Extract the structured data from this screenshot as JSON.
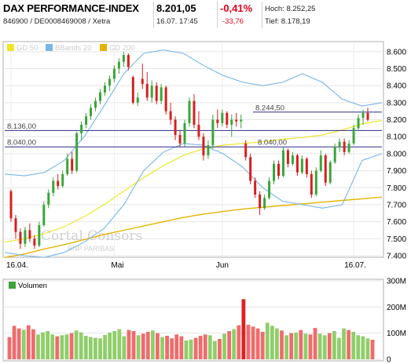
{
  "header": {
    "title": "DAX PERFORMANCE-INDEX",
    "ids": "846900 / DE0008469008 / Xetra",
    "price": "8.201,05",
    "timestamp": "16.07. 17:45",
    "change_pct": "-0,41%",
    "change_abs": "-33,76",
    "high": "Hoch: 8.252,25",
    "low": "Tief: 8.178,19"
  },
  "legend": {
    "gd50": "GD 50",
    "bbands": "BBands 20",
    "gd200": "GD 200"
  },
  "watermark": {
    "brand": "Cortal Consors",
    "sub": "BNP PARIBAS"
  },
  "volume_title": "Volumen",
  "colors": {
    "up": "#3aa53a",
    "down": "#d61f1f",
    "gd50": "#ece72a",
    "gd200": "#e6b400",
    "bbands": "#78b6e8",
    "hline": "#2a2a8a",
    "vol_up": "#8fce6a",
    "vol_down": "#ee6c6c",
    "vol_spike": "#e02020"
  },
  "chart_data": [
    {
      "type": "candlestick",
      "title": "DAX PERFORMANCE-INDEX",
      "x_ticks": [
        "16.04.",
        "Mai",
        "Jun",
        "16.07."
      ],
      "y_ticks": [
        "7.400",
        "7.500",
        "7.600",
        "7.700",
        "7.800",
        "7.900",
        "8.000",
        "8.100",
        "8.200",
        "8.300",
        "8.400",
        "8.500",
        "8.600"
      ],
      "ylim": [
        7400,
        8650
      ],
      "hlines": [
        {
          "value": 8244.5,
          "label": "8.244,50"
        },
        {
          "value": 8136,
          "label": "8.136,00"
        },
        {
          "value": 8040,
          "label": "8.040,00"
        }
      ],
      "hline_labels_right": [
        "8.040,00"
      ],
      "series": [
        {
          "name": "GD 50",
          "kind": "sma50",
          "values": [
            7480,
            7500,
            7530,
            7570,
            7630,
            7700,
            7780,
            7860,
            7930,
            7990,
            8030,
            8050,
            8060,
            8070,
            8085,
            8095,
            8110,
            8140,
            8175,
            8195
          ]
        },
        {
          "name": "GD 200",
          "kind": "sma200",
          "values": [
            7390,
            7410,
            7440,
            7465,
            7495,
            7525,
            7550,
            7575,
            7600,
            7625,
            7645,
            7660,
            7675,
            7685,
            7695,
            7705,
            7715,
            7725,
            7735,
            7745
          ]
        },
        {
          "name": "BBands 20",
          "kind": "bb_upper",
          "values": [
            7880,
            7870,
            7890,
            7960,
            8100,
            8280,
            8470,
            8590,
            8610,
            8590,
            8520,
            8460,
            8420,
            8400,
            8420,
            8470,
            8420,
            8320,
            8280,
            8300
          ]
        },
        {
          "name": "BBands 20",
          "kind": "bb_lower",
          "values": [
            7420,
            7400,
            7390,
            7420,
            7480,
            7560,
            7700,
            7900,
            8010,
            8060,
            8050,
            8000,
            7920,
            7800,
            7720,
            7700,
            7680,
            7700,
            7960,
            8000
          ]
        }
      ],
      "candles": [
        {
          "open": 7780,
          "high": 7790,
          "low": 7600,
          "close": 7620
        },
        {
          "open": 7620,
          "high": 7640,
          "low": 7500,
          "close": 7540
        },
        {
          "open": 7540,
          "high": 7560,
          "low": 7440,
          "close": 7470
        },
        {
          "open": 7470,
          "high": 7570,
          "low": 7450,
          "close": 7550
        },
        {
          "open": 7550,
          "high": 7590,
          "low": 7480,
          "close": 7500
        },
        {
          "open": 7500,
          "high": 7520,
          "low": 7440,
          "close": 7460
        },
        {
          "open": 7460,
          "high": 7600,
          "low": 7450,
          "close": 7580
        },
        {
          "open": 7580,
          "high": 7720,
          "low": 7570,
          "close": 7700
        },
        {
          "open": 7700,
          "high": 7790,
          "low": 7680,
          "close": 7770
        },
        {
          "open": 7770,
          "high": 7860,
          "low": 7750,
          "close": 7840
        },
        {
          "open": 7840,
          "high": 7880,
          "low": 7790,
          "close": 7810
        },
        {
          "open": 7810,
          "high": 7900,
          "low": 7800,
          "close": 7880
        },
        {
          "open": 7880,
          "high": 8000,
          "low": 7870,
          "close": 7970
        },
        {
          "open": 7970,
          "high": 8010,
          "low": 7880,
          "close": 7900
        },
        {
          "open": 7900,
          "high": 8130,
          "low": 7890,
          "close": 8120
        },
        {
          "open": 8120,
          "high": 8190,
          "low": 8080,
          "close": 8170
        },
        {
          "open": 8170,
          "high": 8240,
          "low": 8150,
          "close": 8220
        },
        {
          "open": 8220,
          "high": 8290,
          "low": 8200,
          "close": 8270
        },
        {
          "open": 8270,
          "high": 8330,
          "low": 8250,
          "close": 8310
        },
        {
          "open": 8310,
          "high": 8380,
          "low": 8290,
          "close": 8360
        },
        {
          "open": 8360,
          "high": 8420,
          "low": 8340,
          "close": 8400
        },
        {
          "open": 8400,
          "high": 8460,
          "low": 8370,
          "close": 8440
        },
        {
          "open": 8440,
          "high": 8520,
          "low": 8420,
          "close": 8500
        },
        {
          "open": 8500,
          "high": 8560,
          "low": 8470,
          "close": 8540
        },
        {
          "open": 8540,
          "high": 8600,
          "low": 8510,
          "close": 8580
        },
        {
          "open": 8580,
          "high": 8590,
          "low": 8490,
          "close": 8510
        },
        {
          "open": 8450,
          "high": 8460,
          "low": 8290,
          "close": 8300
        },
        {
          "open": 8300,
          "high": 8360,
          "low": 8280,
          "close": 8330
        },
        {
          "open": 8440,
          "high": 8530,
          "low": 8380,
          "close": 8410
        },
        {
          "open": 8410,
          "high": 8480,
          "low": 8310,
          "close": 8330
        },
        {
          "open": 8330,
          "high": 8430,
          "low": 8300,
          "close": 8400
        },
        {
          "open": 8400,
          "high": 8420,
          "low": 8290,
          "close": 8310
        },
        {
          "open": 8310,
          "high": 8410,
          "low": 8290,
          "close": 8390
        },
        {
          "open": 8390,
          "high": 8400,
          "low": 8230,
          "close": 8250
        },
        {
          "open": 8250,
          "high": 8300,
          "low": 8170,
          "close": 8200
        },
        {
          "open": 8200,
          "high": 8220,
          "low": 8080,
          "close": 8110
        },
        {
          "open": 8110,
          "high": 8140,
          "low": 8040,
          "close": 8060
        },
        {
          "open": 8060,
          "high": 8200,
          "low": 8040,
          "close": 8180
        },
        {
          "open": 8180,
          "high": 8330,
          "low": 8160,
          "close": 8310
        },
        {
          "open": 8310,
          "high": 8350,
          "low": 8150,
          "close": 8170
        },
        {
          "open": 8170,
          "high": 8250,
          "low": 8080,
          "close": 8100
        },
        {
          "open": 8100,
          "high": 8120,
          "low": 7960,
          "close": 7990
        },
        {
          "open": 7990,
          "high": 8080,
          "low": 7970,
          "close": 8050
        },
        {
          "open": 8050,
          "high": 8230,
          "low": 8030,
          "close": 8200
        },
        {
          "open": 8200,
          "high": 8260,
          "low": 8150,
          "close": 8180
        },
        {
          "open": 8180,
          "high": 8260,
          "low": 8160,
          "close": 8240
        },
        {
          "open": 8240,
          "high": 8250,
          "low": 8150,
          "close": 8170
        },
        {
          "open": 8170,
          "high": 8230,
          "low": 8100,
          "close": 8200
        },
        {
          "open": 8200,
          "high": 8240,
          "low": 8160,
          "close": 8190
        },
        {
          "open": 8190,
          "high": 8230,
          "low": 8150,
          "close": 8200
        },
        {
          "open": 8060,
          "high": 8080,
          "low": 7960,
          "close": 7980
        },
        {
          "open": 7980,
          "high": 8000,
          "low": 7820,
          "close": 7840
        },
        {
          "open": 7840,
          "high": 7860,
          "low": 7740,
          "close": 7760
        },
        {
          "open": 7760,
          "high": 7780,
          "low": 7640,
          "close": 7680
        },
        {
          "open": 7680,
          "high": 7760,
          "low": 7670,
          "close": 7740
        },
        {
          "open": 7740,
          "high": 7860,
          "low": 7730,
          "close": 7840
        },
        {
          "open": 7840,
          "high": 7960,
          "low": 7820,
          "close": 7940
        },
        {
          "open": 7940,
          "high": 7960,
          "low": 7850,
          "close": 7870
        },
        {
          "open": 7870,
          "high": 8040,
          "low": 7860,
          "close": 8020
        },
        {
          "open": 8020,
          "high": 8030,
          "low": 7920,
          "close": 7940
        },
        {
          "open": 7940,
          "high": 8010,
          "low": 7930,
          "close": 7990
        },
        {
          "open": 7990,
          "high": 8000,
          "low": 7870,
          "close": 7890
        },
        {
          "open": 7890,
          "high": 7990,
          "low": 7880,
          "close": 7970
        },
        {
          "open": 7970,
          "high": 7980,
          "low": 7860,
          "close": 7880
        },
        {
          "open": 7880,
          "high": 7900,
          "low": 7740,
          "close": 7760
        },
        {
          "open": 7760,
          "high": 7920,
          "low": 7750,
          "close": 7900
        },
        {
          "open": 7900,
          "high": 8020,
          "low": 7890,
          "close": 7990
        },
        {
          "open": 7990,
          "high": 8000,
          "low": 7810,
          "close": 7830
        },
        {
          "open": 7830,
          "high": 7960,
          "low": 7820,
          "close": 7950
        },
        {
          "open": 7950,
          "high": 8060,
          "low": 7940,
          "close": 8040
        },
        {
          "open": 8040,
          "high": 8090,
          "low": 8010,
          "close": 8070
        },
        {
          "open": 8070,
          "high": 8090,
          "low": 7990,
          "close": 8010
        },
        {
          "open": 8010,
          "high": 8080,
          "low": 8000,
          "close": 8060
        },
        {
          "open": 8060,
          "high": 8170,
          "low": 8050,
          "close": 8150
        },
        {
          "open": 8150,
          "high": 8230,
          "low": 8140,
          "close": 8210
        },
        {
          "open": 8210,
          "high": 8260,
          "low": 8170,
          "close": 8240
        },
        {
          "open": 8240,
          "high": 8270,
          "low": 8190,
          "close": 8200
        }
      ]
    },
    {
      "type": "bar",
      "title": "Volumen",
      "y_ticks": [
        "0",
        "100M",
        "200M",
        "300M"
      ],
      "ylim": [
        0,
        300
      ],
      "values": [
        85,
        128,
        118,
        113,
        130,
        115,
        95,
        103,
        108,
        95,
        88,
        92,
        95,
        100,
        110,
        103,
        90,
        85,
        82,
        80,
        93,
        102,
        108,
        115,
        88,
        112,
        108,
        92,
        98,
        105,
        110,
        100,
        85,
        90,
        80,
        95,
        88,
        72,
        75,
        82,
        90,
        95,
        92,
        70,
        78,
        98,
        108,
        115,
        130,
        230,
        132,
        125,
        118,
        105,
        140,
        128,
        118,
        110,
        92,
        100,
        102,
        112,
        98,
        95,
        120,
        98,
        92,
        100,
        108,
        82,
        118,
        112,
        105,
        92,
        88,
        80,
        75
      ],
      "spike_index": 49
    }
  ]
}
